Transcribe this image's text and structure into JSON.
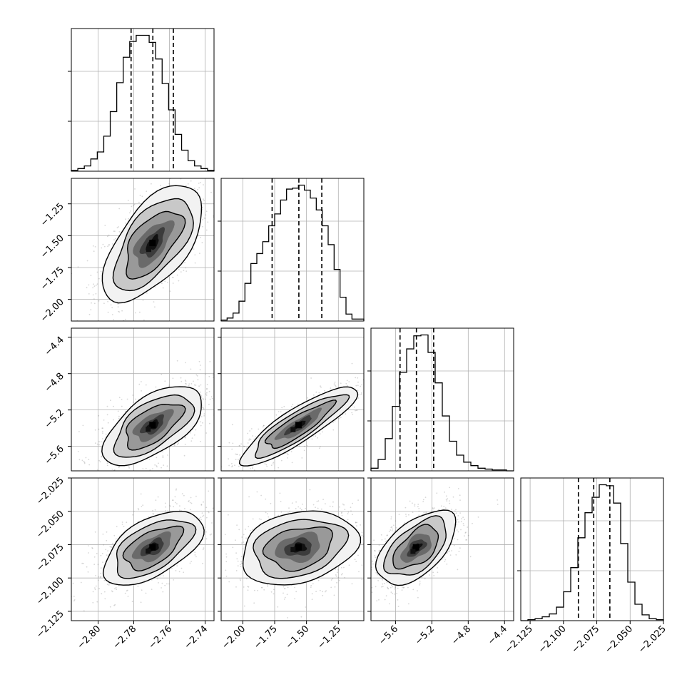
{
  "chart_data": {
    "type": "corner",
    "parameters": [
      {
        "range": [
          -2.815,
          -2.735
        ],
        "ticks": [
          -2.8,
          -2.78,
          -2.76,
          -2.74
        ],
        "tick_labels": [
          "−2.80",
          "−2.78",
          "−2.76",
          "−2.74"
        ],
        "quantiles": [
          -2.7815,
          -2.7693,
          -2.7578
        ],
        "histogram": [
          1,
          3,
          6,
          14,
          22,
          40,
          68,
          101,
          130,
          148,
          155,
          155,
          147,
          128,
          100,
          70,
          42,
          24,
          12,
          6,
          3,
          1
        ]
      },
      {
        "range": [
          -2.17,
          -1.05
        ],
        "ticks": [
          -2.0,
          -1.75,
          -1.5,
          -1.25
        ],
        "tick_labels": [
          "−2.00",
          "−1.75",
          "−1.50",
          "−1.25"
        ],
        "quantiles": [
          -1.77,
          -1.56,
          -1.38
        ],
        "histogram": [
          1,
          3,
          8,
          20,
          38,
          58,
          68,
          80,
          96,
          108,
          122,
          133,
          134,
          137,
          132,
          124,
          112,
          96,
          77,
          52,
          24,
          7,
          2,
          2
        ]
      },
      {
        "range": [
          -5.87,
          -4.3
        ],
        "ticks": [
          -5.6,
          -5.2,
          -4.8,
          -4.4
        ],
        "tick_labels": [
          "−5.6",
          "−5.2",
          "−4.8",
          "−4.4"
        ],
        "quantiles": [
          -5.55,
          -5.37,
          -5.18
        ],
        "histogram": [
          3,
          13,
          37,
          74,
          113,
          140,
          155,
          156,
          136,
          101,
          63,
          34,
          18,
          10,
          6,
          3,
          2,
          1,
          1,
          0
        ]
      },
      {
        "range": [
          -2.132,
          -2.025
        ],
        "ticks": [
          -2.125,
          -2.1,
          -2.075,
          -2.05,
          -2.025
        ],
        "tick_labels": [
          "−2.125",
          "−2.100",
          "−2.075",
          "−2.050",
          "−2.025"
        ],
        "quantiles": [
          -2.0888,
          -2.0773,
          -2.0652
        ],
        "histogram": [
          0,
          1,
          2,
          4,
          7,
          14,
          30,
          55,
          86,
          112,
          128,
          141,
          140,
          122,
          80,
          40,
          17,
          6,
          2,
          1
        ]
      }
    ],
    "correlations": [
      {
        "row": 1,
        "col": 0,
        "rho": 0.6
      },
      {
        "row": 2,
        "col": 0,
        "rho": 0.6
      },
      {
        "row": 2,
        "col": 1,
        "rho": 0.87
      },
      {
        "row": 3,
        "col": 0,
        "rho": 0.55
      },
      {
        "row": 3,
        "col": 1,
        "rho": 0.25
      },
      {
        "row": 3,
        "col": 2,
        "rho": 0.55
      }
    ],
    "colors": {
      "frame": "#000000",
      "grid": "#b0b0b0",
      "scatter": "#6e6e6e",
      "contour": "#000000",
      "fill_levels": [
        "#f2f2f2",
        "#c8c8c8",
        "#999999",
        "#6a6a6a",
        "#3c3c3c",
        "#111111"
      ]
    },
    "grid": true,
    "axis_labels_shown": false,
    "title": ""
  }
}
